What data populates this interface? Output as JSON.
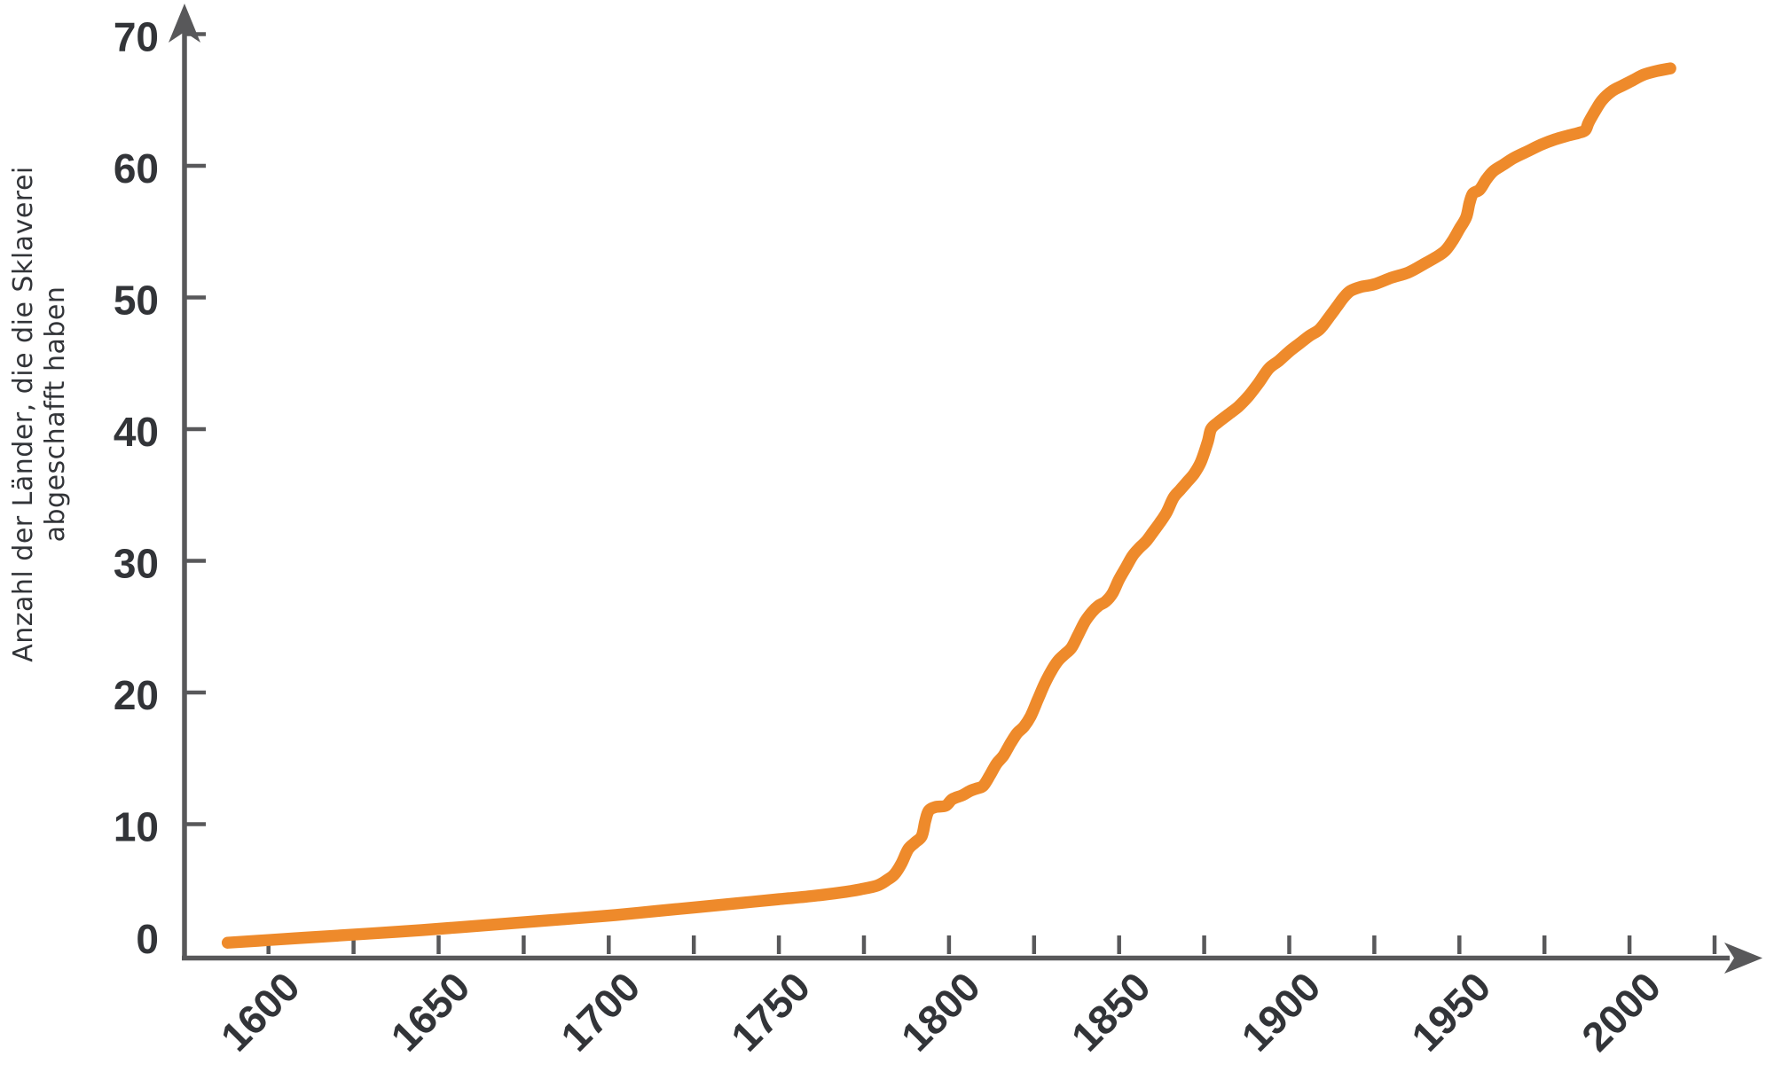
{
  "colors": {
    "line": "#EE8A2B",
    "axis": "#58585A",
    "text": "#323438",
    "background": "#FFFFFF"
  },
  "chart_data": {
    "type": "line",
    "title": "",
    "xlabel": "",
    "ylabel": "Anzahl der Länder, die die Sklaverei abgeschafft haben",
    "grid": false,
    "legend": "none",
    "y_axis": {
      "title_lines": [
        "Anzahl der Länder, die die Sklaverei",
        "abgeschafft haben"
      ],
      "ticks": [
        0,
        10,
        20,
        30,
        40,
        50,
        60,
        70
      ],
      "range": [
        0,
        72
      ]
    },
    "x_axis": {
      "tick_start": 1600,
      "tick_step": 25,
      "tick_end": 2025,
      "labeled_ticks": [
        1600,
        1650,
        1700,
        1750,
        1800,
        1850,
        1900,
        1950,
        2000
      ],
      "range": [
        1585,
        2030
      ]
    },
    "series": [
      {
        "color": "#EE8A2B",
        "points": [
          [
            1588,
            1
          ],
          [
            1600,
            1.2
          ],
          [
            1615,
            1.45
          ],
          [
            1630,
            1.7
          ],
          [
            1645,
            1.95
          ],
          [
            1660,
            2.25
          ],
          [
            1675,
            2.55
          ],
          [
            1690,
            2.85
          ],
          [
            1702,
            3.1
          ],
          [
            1714,
            3.4
          ],
          [
            1726,
            3.7
          ],
          [
            1738,
            4
          ],
          [
            1750,
            4.3
          ],
          [
            1760,
            4.55
          ],
          [
            1768,
            4.8
          ],
          [
            1774,
            5.05
          ],
          [
            1779,
            5.35
          ],
          [
            1782,
            5.8
          ],
          [
            1784,
            6.2
          ],
          [
            1786,
            7
          ],
          [
            1788,
            8.1
          ],
          [
            1790,
            8.6
          ],
          [
            1792,
            9.1
          ],
          [
            1793,
            10.2
          ],
          [
            1794,
            11
          ],
          [
            1796,
            11.3
          ],
          [
            1799,
            11.4
          ],
          [
            1801,
            11.9
          ],
          [
            1804,
            12.2
          ],
          [
            1806,
            12.5
          ],
          [
            1808,
            12.7
          ],
          [
            1810,
            12.9
          ],
          [
            1812,
            13.7
          ],
          [
            1814,
            14.6
          ],
          [
            1816,
            15.2
          ],
          [
            1818,
            16.1
          ],
          [
            1820,
            16.9
          ],
          [
            1822,
            17.4
          ],
          [
            1824,
            18.2
          ],
          [
            1826,
            19.4
          ],
          [
            1828,
            20.6
          ],
          [
            1830,
            21.6
          ],
          [
            1832,
            22.4
          ],
          [
            1834,
            22.9
          ],
          [
            1836,
            23.4
          ],
          [
            1838,
            24.4
          ],
          [
            1840,
            25.4
          ],
          [
            1842,
            26.1
          ],
          [
            1844,
            26.6
          ],
          [
            1846,
            26.9
          ],
          [
            1848,
            27.5
          ],
          [
            1850,
            28.6
          ],
          [
            1852,
            29.5
          ],
          [
            1854,
            30.4
          ],
          [
            1856,
            31
          ],
          [
            1858,
            31.5
          ],
          [
            1860,
            32.2
          ],
          [
            1862,
            32.9
          ],
          [
            1864,
            33.7
          ],
          [
            1866,
            34.8
          ],
          [
            1868,
            35.4
          ],
          [
            1870,
            36
          ],
          [
            1872,
            36.6
          ],
          [
            1874,
            37.5
          ],
          [
            1876,
            39
          ],
          [
            1877,
            40
          ],
          [
            1879,
            40.5
          ],
          [
            1882,
            41.1
          ],
          [
            1885,
            41.7
          ],
          [
            1888,
            42.5
          ],
          [
            1891,
            43.5
          ],
          [
            1894,
            44.6
          ],
          [
            1897,
            45.2
          ],
          [
            1900,
            45.9
          ],
          [
            1903,
            46.5
          ],
          [
            1906,
            47.1
          ],
          [
            1909,
            47.6
          ],
          [
            1912,
            48.6
          ],
          [
            1914,
            49.3
          ],
          [
            1916,
            50
          ],
          [
            1918,
            50.5
          ],
          [
            1921,
            50.8
          ],
          [
            1925,
            51
          ],
          [
            1930,
            51.5
          ],
          [
            1935,
            51.9
          ],
          [
            1940,
            52.6
          ],
          [
            1944,
            53.2
          ],
          [
            1946,
            53.6
          ],
          [
            1948,
            54.3
          ],
          [
            1950,
            55.2
          ],
          [
            1952,
            56.1
          ],
          [
            1953,
            57.2
          ],
          [
            1954,
            57.9
          ],
          [
            1956,
            58.2
          ],
          [
            1958,
            59
          ],
          [
            1960,
            59.6
          ],
          [
            1963,
            60.1
          ],
          [
            1966,
            60.6
          ],
          [
            1970,
            61.1
          ],
          [
            1974,
            61.6
          ],
          [
            1978,
            62
          ],
          [
            1982,
            62.3
          ],
          [
            1985,
            62.5
          ],
          [
            1987,
            62.7
          ],
          [
            1988,
            63.3
          ],
          [
            1990,
            64.2
          ],
          [
            1992,
            65
          ],
          [
            1995,
            65.7
          ],
          [
            1998,
            66.1
          ],
          [
            2001,
            66.5
          ],
          [
            2004,
            66.9
          ],
          [
            2008,
            67.2
          ],
          [
            2012,
            67.4
          ]
        ]
      }
    ]
  }
}
